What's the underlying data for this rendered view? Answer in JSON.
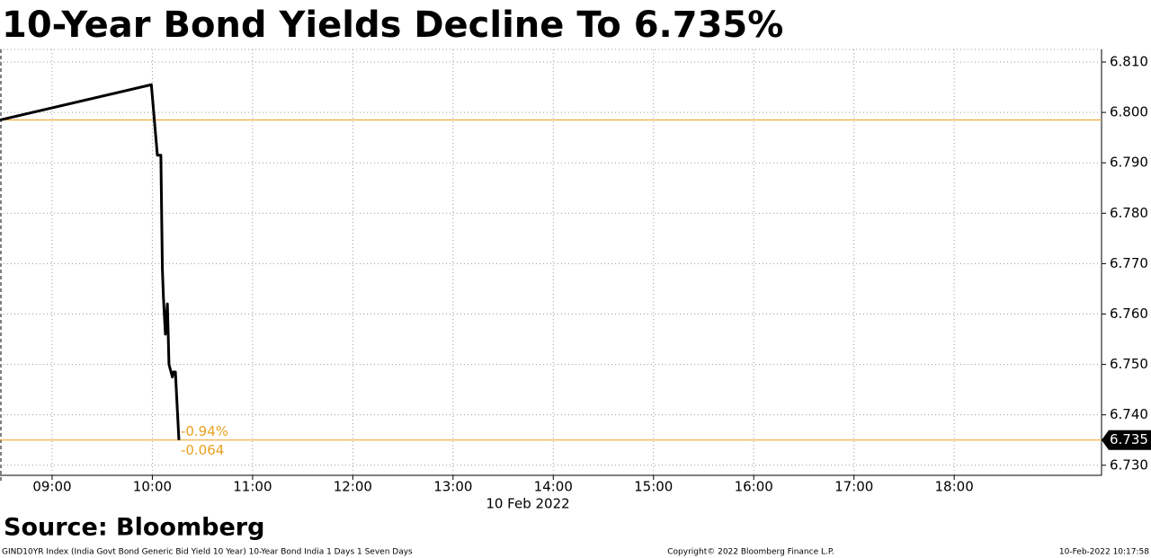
{
  "chart_data": {
    "type": "line",
    "title": "10-Year Bond Yields Decline To 6.735%",
    "x_label": "10 Feb 2022",
    "source": "Source: Bloomberg",
    "footer_left": "GIND10YR Index (India Govt Bond Generic Bid Yield 10 Year) 10-Year Bond India 1 Days 1 Seven Days",
    "footer_center": "Copyright© 2022 Bloomberg Finance L.P.",
    "footer_right": "10-Feb-2022 10:17:58",
    "x": [
      8.48,
      9.99,
      10.05,
      10.085,
      10.1,
      10.11,
      10.13,
      10.15,
      10.166,
      10.2,
      10.21,
      10.23,
      10.265
    ],
    "series": [
      {
        "name": "GIND10YR Index",
        "color": "#000000",
        "values": [
          6.7985,
          6.8055,
          6.7915,
          6.7915,
          6.769,
          6.7635,
          6.756,
          6.762,
          6.75,
          6.7475,
          6.7485,
          6.7485,
          6.735
        ]
      }
    ],
    "reference_lines": [
      {
        "value": 6.7985,
        "color": "#f0a020"
      },
      {
        "value": 6.735,
        "color": "#f0a020"
      }
    ],
    "last_value_label": "6.735",
    "annotations": [
      "-0.94%",
      "-0.064"
    ],
    "xlim": [
      8.48,
      19.47
    ],
    "ylim": [
      6.728,
      6.8125
    ],
    "xticks": [
      {
        "value": 9,
        "label": "09:00"
      },
      {
        "value": 10,
        "label": "10:00"
      },
      {
        "value": 11,
        "label": "11:00"
      },
      {
        "value": 12,
        "label": "12:00"
      },
      {
        "value": 13,
        "label": "13:00"
      },
      {
        "value": 14,
        "label": "14:00"
      },
      {
        "value": 15,
        "label": "15:00"
      },
      {
        "value": 16,
        "label": "16:00"
      },
      {
        "value": 17,
        "label": "17:00"
      },
      {
        "value": 18,
        "label": "18:00"
      }
    ],
    "yticks": [
      {
        "value": 6.73,
        "label": "6.730"
      },
      {
        "value": 6.74,
        "label": "6.740"
      },
      {
        "value": 6.75,
        "label": "6.750"
      },
      {
        "value": 6.76,
        "label": "6.760"
      },
      {
        "value": 6.77,
        "label": "6.770"
      },
      {
        "value": 6.78,
        "label": "6.780"
      },
      {
        "value": 6.79,
        "label": "6.790"
      },
      {
        "value": 6.8,
        "label": "6.800"
      },
      {
        "value": 6.81,
        "label": "6.810"
      }
    ],
    "grid": true
  }
}
